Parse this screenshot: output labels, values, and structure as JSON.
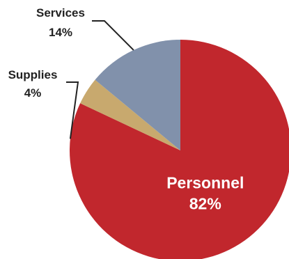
{
  "chart_data": {
    "type": "pie",
    "start_angle_deg": 0,
    "direction": "clockwise",
    "slices": [
      {
        "label": "Personnel",
        "value": 82,
        "value_label": "82%",
        "color": "#c1272d",
        "label_color": "#ffffff",
        "label_position": "inside"
      },
      {
        "label": "Supplies",
        "value": 4,
        "value_label": "4%",
        "color": "#c8a96e",
        "label_color": "#222222",
        "label_position": "outside"
      },
      {
        "label": "Services",
        "value": 14,
        "value_label": "14%",
        "color": "#8191ab",
        "label_color": "#222222",
        "label_position": "outside"
      }
    ],
    "legend": "none"
  }
}
